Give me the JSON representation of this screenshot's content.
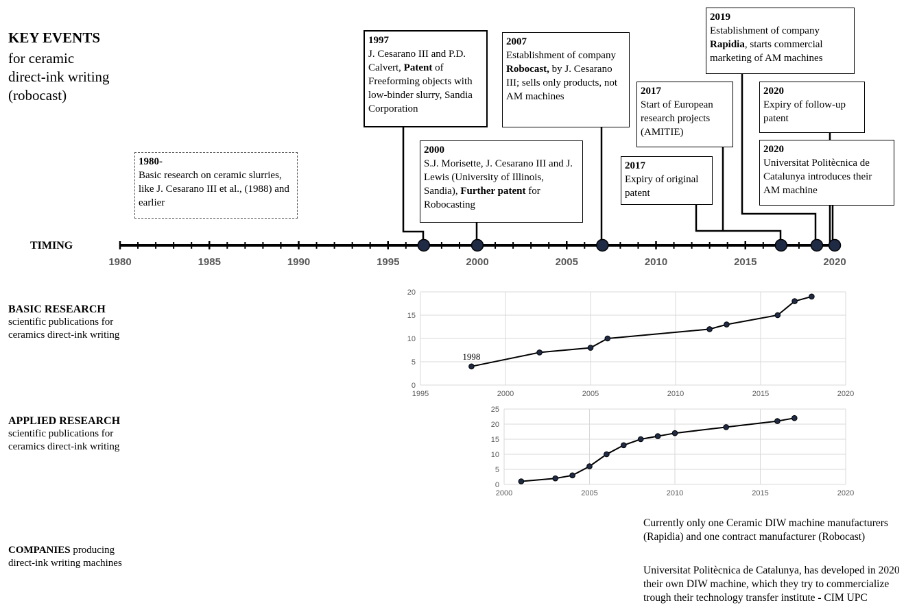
{
  "title": {
    "main": "KEY EVENTS",
    "sub": [
      "for ceramic",
      "direct-ink writing",
      "(robocast)"
    ]
  },
  "events": [
    {
      "year": "1980-",
      "text": "Basic research on ceramic slurries, like J. Cesarano III et al., (1988) and earlier"
    },
    {
      "year": "1997",
      "text_before": "J. Cesarano III and P.D. Calvert, ",
      "bold": "Patent",
      "text_after": " of Freeforming objects with low-binder slurry, Sandia Corporation"
    },
    {
      "year": "2000",
      "text_before": "S.J. Morisette, J. Cesarano III and J. Lewis (University of Illinois, Sandia), ",
      "bold": "Further patent",
      "text_after": " for Robocasting"
    },
    {
      "year": "2007",
      "text_before": "Establishment of company ",
      "bold": "Robocast,",
      "text_after": " by J. Cesarano III; sells only products, not AM machines"
    },
    {
      "year": "2017",
      "text": "Expiry of original patent"
    },
    {
      "year": "2017",
      "text": "Start of European research projects (AMITIE)"
    },
    {
      "year": "2019",
      "text_before": "Establishment of company ",
      "bold": "Rapidia",
      "text_after": ", starts commercial marketing of AM machines"
    },
    {
      "year": "2020",
      "text": "Expiry of follow-up patent"
    },
    {
      "year": "2020",
      "text": "Universitat Politècnica de Catalunya introduces their AM machine"
    }
  ],
  "timeline": {
    "label": "TIMING",
    "range": [
      1980,
      2020
    ],
    "tick_labels": [
      "1980",
      "1985",
      "1990",
      "1995",
      "2000",
      "2005",
      "2010",
      "2015",
      "2020"
    ],
    "milestones": [
      1997,
      2000,
      2007,
      2017,
      2019,
      2020
    ]
  },
  "sections": {
    "basic": {
      "title": "BASIC RESEARCH",
      "desc": "scientific publications for ceramics direct-ink writing"
    },
    "applied": {
      "title": "APPLIED RESEARCH",
      "desc": "scientific publications for ceramics direct-ink writing"
    },
    "companies": {
      "title": "COMPANIES",
      "title_rest": " producing",
      "desc": "direct-ink writing machines"
    }
  },
  "chart_data": [
    {
      "type": "line",
      "x": [
        1998,
        2002,
        2005,
        2006,
        2012,
        2013,
        2016,
        2017,
        2018
      ],
      "y": [
        4,
        7,
        8,
        10,
        12,
        13,
        15,
        18,
        19
      ],
      "xlim": [
        1995,
        2020
      ],
      "ylim": [
        0,
        20
      ],
      "x_ticks": [
        1995,
        2000,
        2005,
        2010,
        2015,
        2020
      ],
      "y_ticks": [
        0,
        5,
        10,
        15,
        20
      ],
      "annotation": {
        "x": 1998,
        "text": "1998"
      },
      "grid": true,
      "colors": {
        "line": "#000000",
        "marker": "#1f2a44"
      }
    },
    {
      "type": "line",
      "x": [
        2001,
        2003,
        2004,
        2005,
        2006,
        2007,
        2008,
        2009,
        2010,
        2013,
        2016,
        2017
      ],
      "y": [
        1,
        2,
        3,
        6,
        10,
        13,
        15,
        16,
        17,
        19,
        21,
        22
      ],
      "xlim": [
        2000,
        2020
      ],
      "ylim": [
        0,
        25
      ],
      "x_ticks": [
        2000,
        2005,
        2010,
        2015,
        2020
      ],
      "y_ticks": [
        0,
        5,
        10,
        15,
        20,
        25
      ],
      "grid": true,
      "colors": {
        "line": "#000000",
        "marker": "#1f2a44"
      }
    }
  ],
  "notes": [
    [
      "Currently only one Ceramic DIW machine manufacturers",
      "(Rapidia) and one contract manufacturer (Robocast)"
    ],
    [
      "Universitat Politècnica de Catalunya, has developed in 2020",
      "their own DIW machine, which they try to commercialize",
      "trough their technology transfer institute - CIM UPC"
    ]
  ],
  "colors": {
    "timeline": "#000000",
    "milestone": "#1f2a44",
    "axis_text": "#595959",
    "grid": "#d9d9d9"
  }
}
